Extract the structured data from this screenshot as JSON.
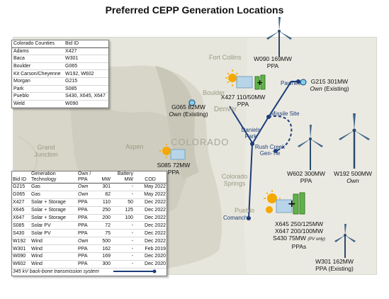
{
  "title": "Preferred CEPP Generation Locations",
  "map": {
    "state_label": "COLORADO",
    "cities": {
      "fort_collins": "Fort Collins",
      "boulder": "Boulder",
      "denver": "Denver",
      "grand_junction": "Grand Junction",
      "aspen": "Aspen",
      "colorado_springs": "Colorado Springs",
      "pueblo": "Pueblo"
    },
    "route_labels": {
      "pawnee": "Pawnee",
      "missile_site": "Missile Site",
      "daniels_park": "Daniels Park",
      "rush_creek": "Rush Creek Gen-Tie",
      "comanche": "Comanche"
    },
    "sites": {
      "w090": {
        "line1": "W090 169MW",
        "line2": "PPA"
      },
      "x427": {
        "line1": "X427 110/50MW",
        "line2": "PPA"
      },
      "g065": {
        "line1": "G065 82MW",
        "line2a": "Own",
        "line2b": " (Existing)"
      },
      "g215": {
        "line1": "G215 301MW",
        "line2a": "Own",
        "line2b": " (Existing)"
      },
      "s085": {
        "line1": "S085 72MW",
        "line2": "PPA"
      },
      "w602": {
        "line1": "W602 300MW",
        "line2": "PPA"
      },
      "w192": {
        "line1": "W192 500MW",
        "line2": "Own"
      },
      "pueblo_group": {
        "line1": "X645 250/125MW",
        "line2": "X647 200/100MW",
        "line3a": "S430 75MW",
        "line3b": "(PV only)",
        "line4": "PPAs"
      },
      "w301": {
        "line1": "W301 162MW",
        "line2": "PPA (Existing)"
      }
    }
  },
  "counties_table": {
    "headers": [
      "Colorado Counties",
      "Bid ID"
    ],
    "rows": [
      [
        "Adams",
        "X427"
      ],
      [
        "Baca",
        "W301"
      ],
      [
        "Boulder",
        "G065"
      ],
      [
        "Kit Carson/Cheyenne",
        "W192, W602"
      ],
      [
        "Morgan",
        "G215"
      ],
      [
        "Park",
        "S085"
      ],
      [
        "Pueblo",
        "S430, X645, X647"
      ],
      [
        "Weld",
        "W090"
      ]
    ]
  },
  "generation_table": {
    "headers": {
      "bid": "Bid ID",
      "gen_top": "Generation",
      "gen_bottom": "Technology",
      "own_top": "Own /",
      "own_bottom": "PPA",
      "mw": "MW",
      "batt_top": "Battery",
      "batt_bottom": "MW",
      "cod": "COD"
    },
    "rows": [
      [
        "G215",
        "Gas",
        "Own",
        "301",
        "-",
        "May 2022"
      ],
      [
        "G065",
        "Gas",
        "Own",
        "82",
        "-",
        "May 2022"
      ],
      [
        "X427",
        "Solar + Storage",
        "PPA",
        "110",
        "50",
        "Dec 2022"
      ],
      [
        "X645",
        "Solar + Storage",
        "PPA",
        "250",
        "125",
        "Dec 2022"
      ],
      [
        "X647",
        "Solar + Storage",
        "PPA",
        "200",
        "100",
        "Dec 2022"
      ],
      [
        "S085",
        "Solar PV",
        "PPA",
        "72",
        "-",
        "Dec 2022"
      ],
      [
        "S430",
        "Solar PV",
        "PPA",
        "75",
        "-",
        "Dec 2022"
      ],
      [
        "W192",
        "Wind",
        "Own",
        "500",
        "-",
        "Dec 2022"
      ],
      [
        "W301",
        "Wind",
        "PPA",
        "162",
        "-",
        "Feb 2019"
      ],
      [
        "W090",
        "Wind",
        "PPA",
        "169",
        "-",
        "Dec 2020"
      ],
      [
        "W602",
        "Wind",
        "PPA",
        "300",
        "-",
        "Dec 2020"
      ]
    ],
    "legend": "345 kV back-bone transmission system"
  },
  "colors": {
    "transmission": "#1d3d7a",
    "gas_dot": "#7fd0ec",
    "map_bg": "#e7e6dd",
    "sun": "#f5a800",
    "battery": "#5fb34a"
  }
}
